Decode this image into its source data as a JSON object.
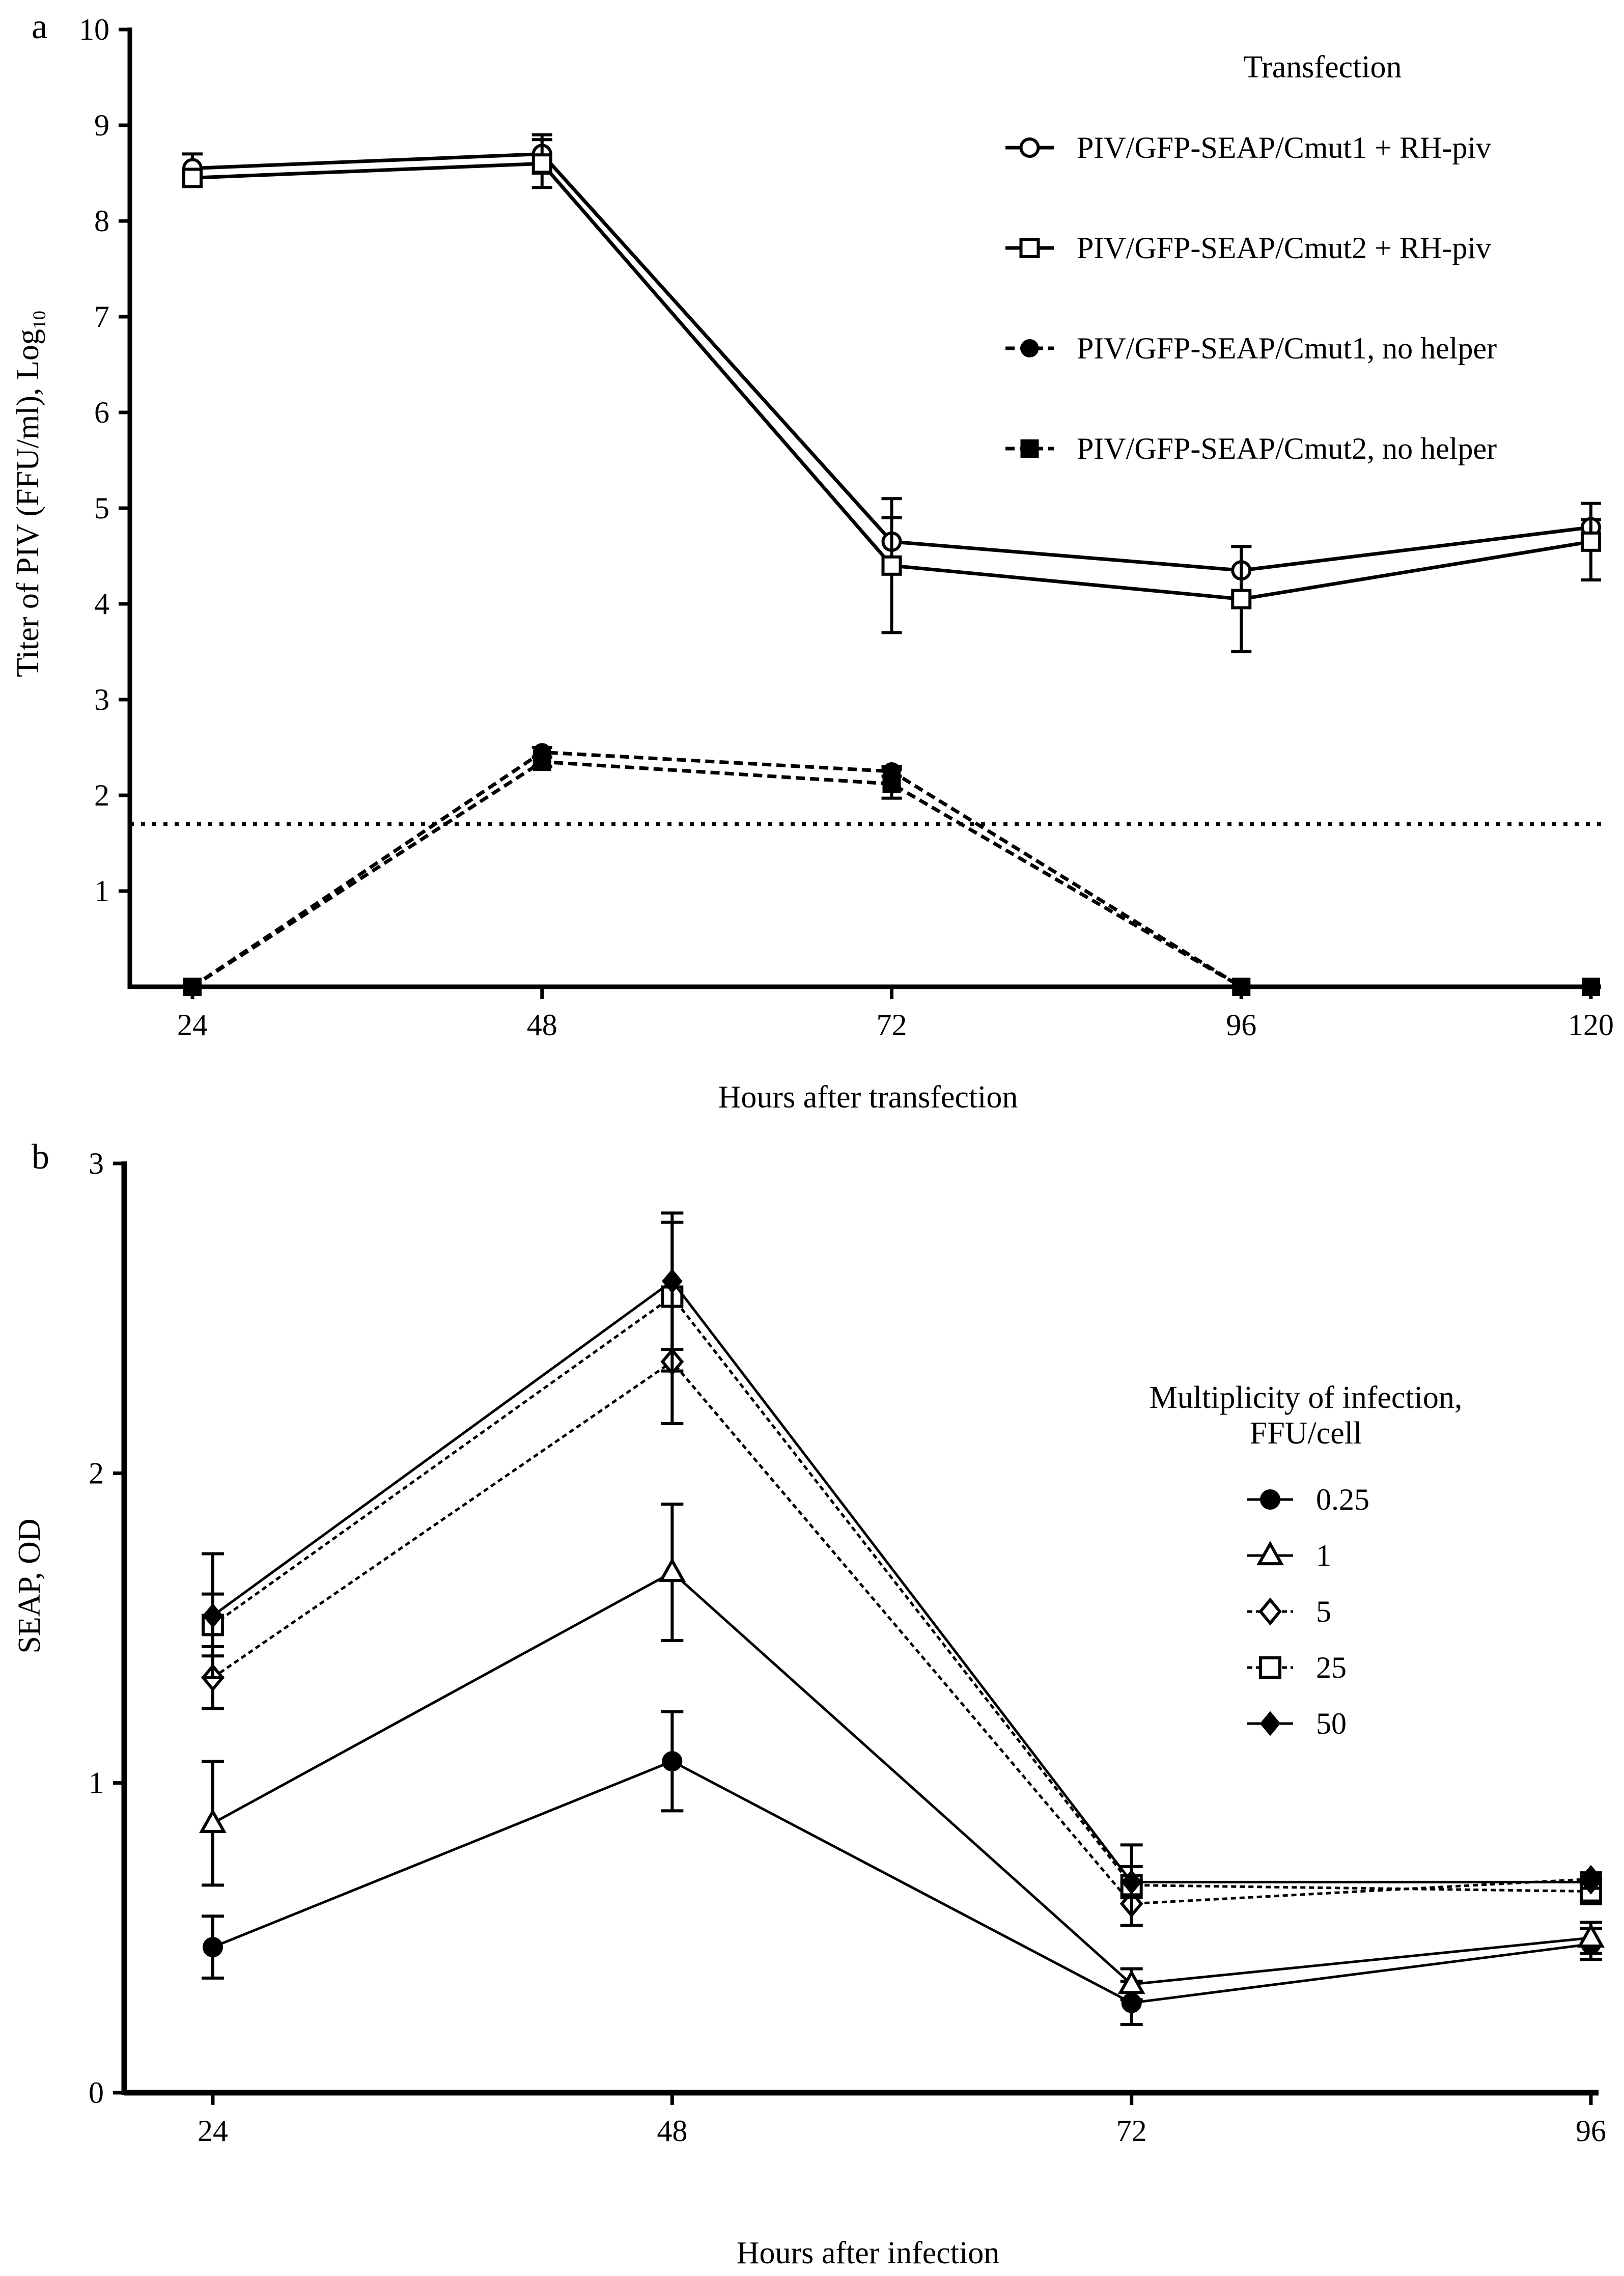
{
  "chart_data": [
    {
      "panel": "a",
      "type": "line",
      "xlabel": "Hours after transfection",
      "ylabel": "Titer of PIV (FFU/ml), Log",
      "ylabel_sub": "10",
      "categories": [
        "24",
        "48",
        "72",
        "96",
        "120"
      ],
      "x": [
        24,
        48,
        72,
        96,
        120
      ],
      "xlim": [
        24,
        120
      ],
      "ylim": [
        0,
        10
      ],
      "yticks": [
        "1",
        "2",
        "3",
        "4",
        "5",
        "6",
        "7",
        "8",
        "9",
        "10"
      ],
      "legend_title": "Transfection",
      "legend_position": "top-right",
      "reference_line": {
        "y": 1.7,
        "style": "dotted"
      },
      "series": [
        {
          "name": "PIV/GFP-SEAP/Cmut1 + RH-piv",
          "marker": "open-circle",
          "line": "solid",
          "values": [
            8.55,
            8.7,
            4.65,
            4.35,
            4.8
          ],
          "errors": [
            0.15,
            0.2,
            0.25,
            0.25,
            0.08
          ]
        },
        {
          "name": "PIV/GFP-SEAP/Cmut2 + RH-piv",
          "marker": "open-square",
          "line": "solid",
          "values": [
            8.45,
            8.6,
            4.4,
            4.05,
            4.65
          ],
          "errors": [
            0.08,
            0.25,
            0.7,
            0.55,
            0.4
          ]
        },
        {
          "name": "PIV/GFP-SEAP/Cmut1, no helper",
          "marker": "filled-circle",
          "line": "dashed",
          "values": [
            0,
            2.45,
            2.25,
            0,
            0
          ],
          "errors": [
            0,
            0.05,
            0.05,
            0,
            0
          ]
        },
        {
          "name": "PIV/GFP-SEAP/Cmut2, no helper",
          "marker": "filled-square",
          "line": "dashed",
          "values": [
            0,
            2.35,
            2.12,
            0,
            0
          ],
          "errors": [
            0,
            0.05,
            0.15,
            0,
            0
          ]
        }
      ]
    },
    {
      "panel": "b",
      "type": "line",
      "xlabel": "Hours after infection",
      "ylabel": "SEAP, OD",
      "categories": [
        "24",
        "48",
        "72",
        "96"
      ],
      "x": [
        24,
        48,
        72,
        96
      ],
      "xlim": [
        24,
        96
      ],
      "ylim": [
        0,
        3
      ],
      "yticks": [
        "0",
        "1",
        "2",
        "3"
      ],
      "legend_title_line1": "Multiplicity of infection,",
      "legend_title_line2": "FFU/cell",
      "legend_position": "right",
      "series": [
        {
          "name": "0.25",
          "marker": "filled-circle",
          "line": "solid",
          "values": [
            0.47,
            1.07,
            0.29,
            0.48
          ],
          "errors": [
            0.1,
            0.16,
            0.07,
            0.05
          ]
        },
        {
          "name": "1",
          "marker": "open-triangle",
          "line": "solid",
          "values": [
            0.87,
            1.68,
            0.35,
            0.5
          ],
          "errors": [
            0.2,
            0.22,
            0.05,
            0.05
          ]
        },
        {
          "name": "5",
          "marker": "open-diamond",
          "line": "dotted",
          "values": [
            1.34,
            2.36,
            0.61,
            0.69
          ],
          "errors": [
            0.1,
            0.2,
            0.07,
            0.02
          ]
        },
        {
          "name": "25",
          "marker": "open-square",
          "line": "dotted",
          "values": [
            1.51,
            2.57,
            0.67,
            0.65
          ],
          "errors": [
            0.1,
            0.24,
            0.13,
            0.04
          ]
        },
        {
          "name": "50",
          "marker": "filled-diamond",
          "line": "solid",
          "values": [
            1.54,
            2.62,
            0.68,
            0.68
          ],
          "errors": [
            0.2,
            0.22,
            0.05,
            0.02
          ]
        }
      ]
    }
  ],
  "colors": {
    "ink": "#000000",
    "background": "#ffffff"
  }
}
